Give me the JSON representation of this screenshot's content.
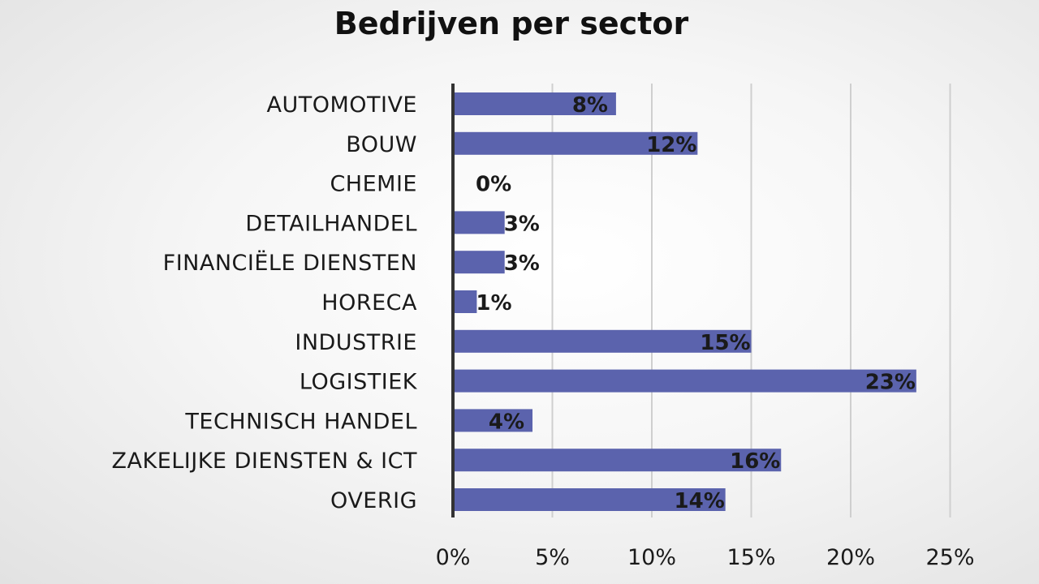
{
  "chart_data": {
    "type": "bar",
    "orientation": "horizontal",
    "title": "Bedrijven per sector",
    "categories": [
      "AUTOMOTIVE",
      "BOUW",
      "CHEMIE",
      "DETAILHANDEL",
      "FINANCIËLE DIENSTEN",
      "HORECA",
      "INDUSTRIE",
      "LOGISTIEK",
      "TECHNISCH HANDEL",
      "ZAKELIJKE DIENSTEN & ICT",
      "OVERIG"
    ],
    "values": [
      8.2,
      12.3,
      0,
      2.6,
      2.6,
      1.2,
      15,
      23.3,
      4,
      16.5,
      13.7
    ],
    "data_labels": [
      "8%",
      "12%",
      "0%",
      "3%",
      "3%",
      "1%",
      "15%",
      "23%",
      "4%",
      "16%",
      "14%"
    ],
    "xticks": [
      0,
      5,
      10,
      15,
      20,
      25
    ],
    "xtick_labels": [
      "0%",
      "5%",
      "10%",
      "15%",
      "20%",
      "25%"
    ],
    "xlim": [
      0,
      25
    ],
    "grid": true,
    "legend": false,
    "bar_color": "#5b63ad"
  }
}
